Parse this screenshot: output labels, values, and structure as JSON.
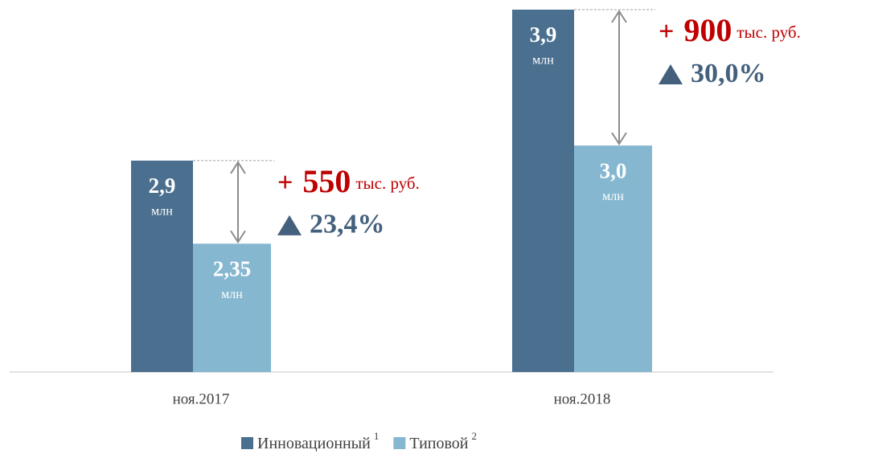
{
  "chart_data": {
    "type": "bar",
    "categories": [
      "ноя.2017",
      "ноя.2018"
    ],
    "value_unit": "млн",
    "series": [
      {
        "name": "Инновационный",
        "footnote": "1",
        "color": "#4a6f8f",
        "values": [
          2.9,
          3.9
        ],
        "value_labels": [
          "2,9",
          "3,9"
        ]
      },
      {
        "name": "Типовой",
        "footnote": "2",
        "color": "#86b7d0",
        "values": [
          2.35,
          3.0
        ],
        "value_labels": [
          "2,35",
          "3,0"
        ]
      }
    ],
    "ylim": [
      1.5,
      3.9
    ],
    "annotations": [
      {
        "sign": "+",
        "diff": 550,
        "unit": "тыс. руб.",
        "change": "23,4%"
      },
      {
        "sign": "+",
        "diff": 900,
        "unit": "тыс. руб.",
        "change": "30,0%"
      }
    ]
  }
}
